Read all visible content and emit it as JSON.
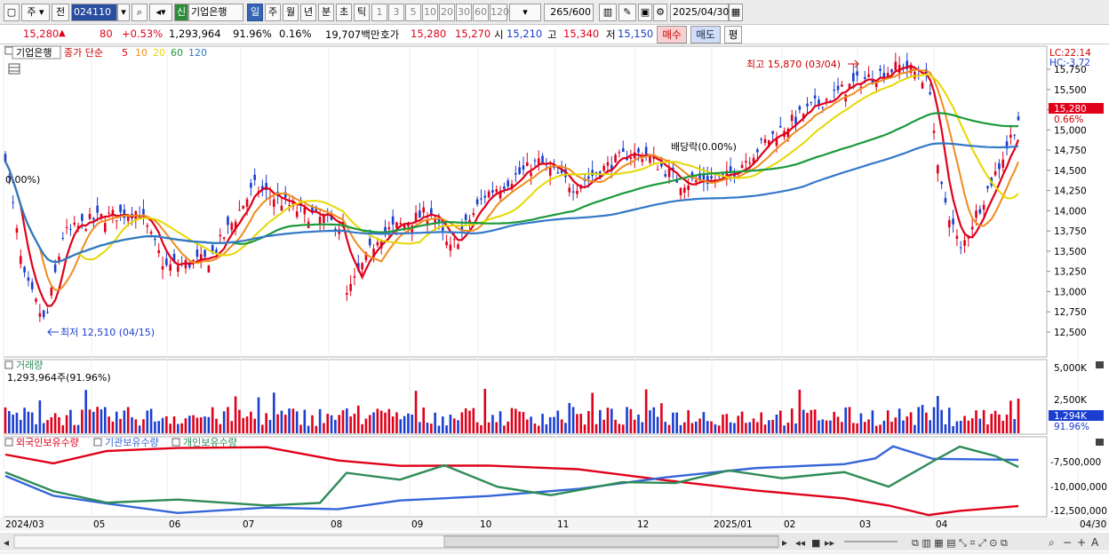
{
  "toolbar": {
    "market": "주",
    "category": "전",
    "code": "024110",
    "badge": "신",
    "stock_name": "기업은행",
    "periods": [
      "일",
      "주",
      "월",
      "년",
      "분",
      "초",
      "틱"
    ],
    "intervals": [
      "1",
      "3",
      "5",
      "10",
      "20",
      "30",
      "60",
      "120"
    ],
    "count": "265",
    "count_max": "/600",
    "date": "2025/04/30"
  },
  "quote": {
    "price": "15,280",
    "change": "80",
    "change_pct": "+0.53%",
    "volume": "1,293,964",
    "vol_ratio": "91.96%",
    "turnover": "0.16%",
    "amount": "19,707백만",
    "bid_label": "호가",
    "ask": "15,280",
    "bid": "15,270",
    "open_label": "시",
    "open": "15,210",
    "high_label": "고",
    "high": "15,340",
    "low_label": "저",
    "low": "15,150",
    "buy": "매수",
    "sell": "매도",
    "eval": "평"
  },
  "price_panel": {
    "name": "기업은행",
    "legend_close": "종가 단순",
    "ma": [
      {
        "label": "5",
        "color": "#e0001a"
      },
      {
        "label": "10",
        "color": "#f08c1e"
      },
      {
        "label": "20",
        "color": "#e6d800"
      },
      {
        "label": "60",
        "color": "#1a9a3a"
      },
      {
        "label": "120",
        "color": "#3478c8"
      }
    ],
    "ticks": [
      "15,750",
      "15,500",
      "15,250",
      "15,000",
      "14,750",
      "14,500",
      "14,250",
      "14,000",
      "13,750",
      "13,500",
      "13,250",
      "13,000",
      "12,750",
      "12,500"
    ],
    "lc": "LC:22.14",
    "hc": "HC:-3.72",
    "cur_price": "15,280",
    "cur_pct": "0.66%",
    "high_note": "최고 15,870 (03/04)",
    "low_note": "최저 12,510 (04/15)",
    "div_note": "배당락(0.00%)",
    "left_note": "0.00%)"
  },
  "volume_panel": {
    "title": "거래량",
    "detail": "1,293,964주(91.96%)",
    "ticks": [
      "5,000K",
      "2,500K"
    ],
    "cur": "1,294K",
    "cur_pct": "91.96%"
  },
  "holding_panel": {
    "series": [
      {
        "label": "외국인보유수량",
        "color": "#e0001a"
      },
      {
        "label": "기관보유수량",
        "color": "#3466d8"
      },
      {
        "label": "개인보유수량",
        "color": "#2e8b57"
      }
    ],
    "ticks": [
      "-7,500,000",
      "-10,000,000",
      "-12,500,000"
    ]
  },
  "xaxis": [
    "2024/03",
    "05",
    "06",
    "07",
    "08",
    "09",
    "10",
    "11",
    "12",
    "2025/01",
    "02",
    "03",
    "04",
    "04/30"
  ],
  "colors": {
    "up": "#e0001a",
    "down": "#1a3fd0",
    "bg": "#ffffff"
  }
}
